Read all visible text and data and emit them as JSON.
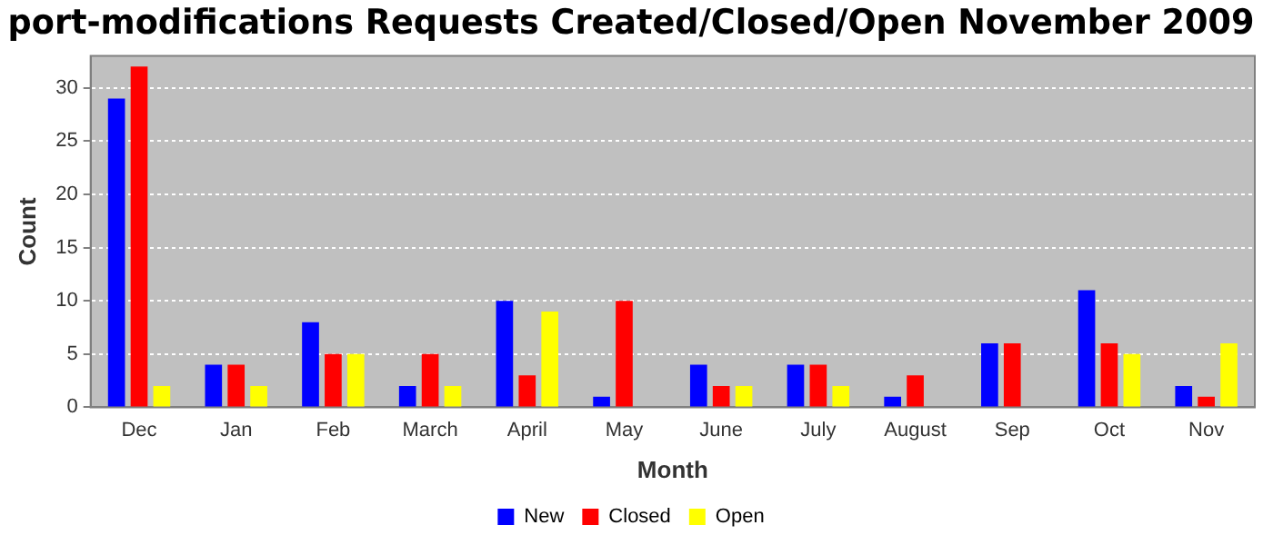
{
  "chart_data": {
    "type": "bar",
    "title": "port-modifications Requests Created/Closed/Open November 2009",
    "xlabel": "Month",
    "ylabel": "Count",
    "categories": [
      "Dec",
      "Jan",
      "Feb",
      "March",
      "April",
      "May",
      "June",
      "July",
      "August",
      "Sep",
      "Oct",
      "Nov"
    ],
    "series": [
      {
        "name": "New",
        "color": "#0000ff",
        "values": [
          29,
          4,
          8,
          2,
          10,
          1,
          4,
          4,
          1,
          6,
          11,
          2
        ]
      },
      {
        "name": "Closed",
        "color": "#ff0000",
        "values": [
          32,
          4,
          5,
          5,
          3,
          10,
          2,
          4,
          3,
          6,
          6,
          1
        ]
      },
      {
        "name": "Open",
        "color": "#ffff00",
        "values": [
          2,
          2,
          5,
          2,
          9,
          0,
          2,
          2,
          0,
          0,
          5,
          6
        ]
      }
    ],
    "ylim": [
      0,
      33
    ],
    "yticks": [
      0,
      5,
      10,
      15,
      20,
      25,
      30
    ],
    "grid": "y",
    "legend": "bottom"
  }
}
